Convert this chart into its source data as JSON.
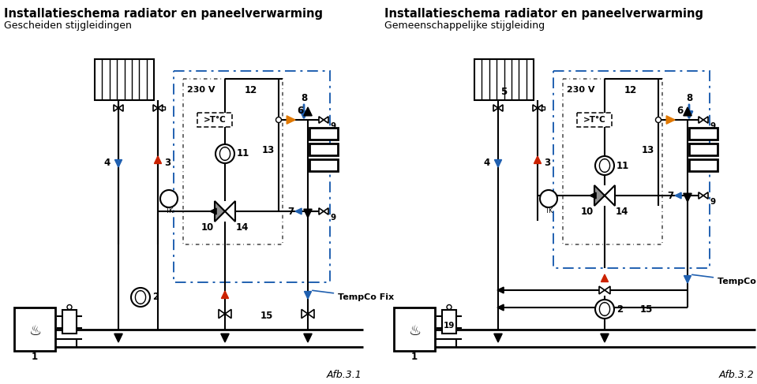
{
  "title_left_bold": "Installatieschema radiator en paneelverwarming",
  "title_left_sub": "Gescheiden stijgleidingen",
  "title_right_bold": "Installatieschema radiator en paneelverwarming",
  "title_right_sub": "Gemeenschappelijke stijgleiding",
  "caption_left": "Afb.3.1",
  "caption_right": "Afb.3.2",
  "bg_color": "#ffffff",
  "blue_color": "#2060b0",
  "red_color": "#cc2200",
  "orange_color": "#e07800",
  "gray_color": "#909090",
  "dashed_box_color": "#2060b0"
}
